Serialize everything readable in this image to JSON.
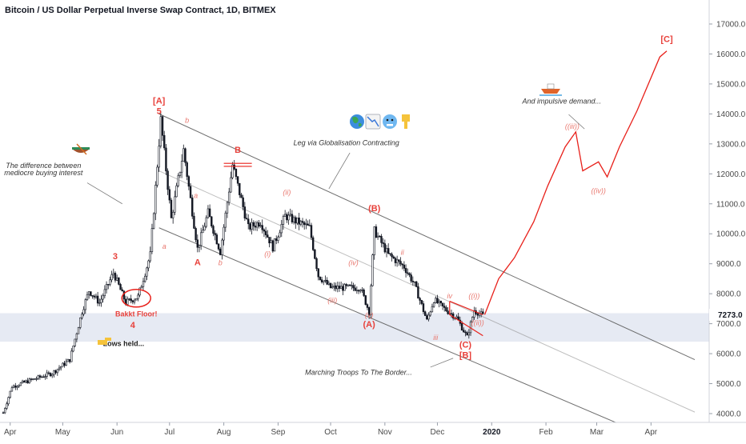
{
  "title": "Bitcoin / US Dollar Perpetual Inverse Swap Contract, 1D, BITMEX",
  "colors": {
    "candle": "#131722",
    "projection": "#e8201a",
    "wave_label": "#e8413b",
    "zone": "#dde3ef",
    "channel": "#555555",
    "price_badge": "#ffffff"
  },
  "price_badge": "7273.0",
  "chart_data": {
    "type": "candlestick",
    "x_tick_labels": [
      "Apr",
      "May",
      "Jun",
      "Jul",
      "Aug",
      "Sep",
      "Oct",
      "Nov",
      "Dec",
      "2020",
      "Feb",
      "Mar",
      "Apr"
    ],
    "y_tick_labels": [
      "17000.0",
      "16000.0",
      "15000.0",
      "14000.0",
      "13000.0",
      "12000.0",
      "11000.0",
      "10000.0",
      "9000.0",
      "8000.0",
      "7000.0",
      "6000.0",
      "5000.0",
      "4000.0"
    ],
    "y_ticks": [
      17000,
      16000,
      15000,
      14000,
      13000,
      12000,
      11000,
      10000,
      9000,
      8000,
      7000,
      6000,
      5000,
      4000
    ],
    "ylim": [
      3800,
      17700
    ],
    "grid": false,
    "support_zone": [
      6400,
      7350
    ],
    "price_path": [
      {
        "date": "2019-03-28",
        "price": 4030
      },
      {
        "date": "2019-04-02",
        "price": 4900
      },
      {
        "date": "2019-04-12",
        "price": 5100
      },
      {
        "date": "2019-04-25",
        "price": 5350
      },
      {
        "date": "2019-05-05",
        "price": 5800
      },
      {
        "date": "2019-05-12",
        "price": 7400
      },
      {
        "date": "2019-05-16",
        "price": 8100
      },
      {
        "date": "2019-05-22",
        "price": 7700
      },
      {
        "date": "2019-05-30",
        "price": 8700
      },
      {
        "date": "2019-06-06",
        "price": 7700
      },
      {
        "date": "2019-06-13",
        "price": 7900
      },
      {
        "date": "2019-06-20",
        "price": 9300
      },
      {
        "date": "2019-06-26",
        "price": 13800
      },
      {
        "date": "2019-07-02",
        "price": 10500
      },
      {
        "date": "2019-07-09",
        "price": 12800
      },
      {
        "date": "2019-07-17",
        "price": 9500
      },
      {
        "date": "2019-07-23",
        "price": 10700
      },
      {
        "date": "2019-07-30",
        "price": 9400
      },
      {
        "date": "2019-08-06",
        "price": 12300
      },
      {
        "date": "2019-08-15",
        "price": 10200
      },
      {
        "date": "2019-08-22",
        "price": 10400
      },
      {
        "date": "2019-08-29",
        "price": 9550
      },
      {
        "date": "2019-09-05",
        "price": 10600
      },
      {
        "date": "2019-09-19",
        "price": 10200
      },
      {
        "date": "2019-09-24",
        "price": 8600
      },
      {
        "date": "2019-10-01",
        "price": 8200
      },
      {
        "date": "2019-10-08",
        "price": 8200
      },
      {
        "date": "2019-10-18",
        "price": 8200
      },
      {
        "date": "2019-10-23",
        "price": 7400
      },
      {
        "date": "2019-10-26",
        "price": 10100
      },
      {
        "date": "2019-11-03",
        "price": 9300
      },
      {
        "date": "2019-11-12",
        "price": 8900
      },
      {
        "date": "2019-11-18",
        "price": 8300
      },
      {
        "date": "2019-11-25",
        "price": 7100
      },
      {
        "date": "2019-11-29",
        "price": 7800
      },
      {
        "date": "2019-12-05",
        "price": 7500
      },
      {
        "date": "2019-12-12",
        "price": 7200
      },
      {
        "date": "2019-12-18",
        "price": 6550
      },
      {
        "date": "2019-12-22",
        "price": 7450
      },
      {
        "date": "2019-12-27",
        "price": 7273
      }
    ],
    "projection_path": [
      {
        "date": "2019-12-28",
        "price": 7300
      },
      {
        "date": "2020-01-05",
        "price": 8500
      },
      {
        "date": "2020-01-14",
        "price": 9200
      },
      {
        "date": "2020-01-25",
        "price": 10400
      },
      {
        "date": "2020-02-02",
        "price": 11600
      },
      {
        "date": "2020-02-12",
        "price": 12900
      },
      {
        "date": "2020-02-18",
        "price": 13400
      },
      {
        "date": "2020-02-22",
        "price": 12100
      },
      {
        "date": "2020-03-02",
        "price": 12400
      },
      {
        "date": "2020-03-07",
        "price": 11900
      },
      {
        "date": "2020-03-14",
        "price": 12900
      },
      {
        "date": "2020-03-24",
        "price": 14100
      },
      {
        "date": "2020-04-06",
        "price": 15900
      },
      {
        "date": "2020-04-10",
        "price": 16100
      }
    ],
    "annotations": {
      "wave_labels": [
        {
          "text": "[A]",
          "date": "2019-06-25",
          "price": 14340,
          "style": "big"
        },
        {
          "text": "5",
          "date": "2019-06-25",
          "price": 14000,
          "style": "big"
        },
        {
          "text": "b",
          "date": "2019-07-11",
          "price": 13700,
          "style": "sub"
        },
        {
          "text": "a",
          "date": "2019-06-28",
          "price": 9500,
          "style": "sub"
        },
        {
          "text": "a",
          "date": "2019-07-16",
          "price": 11200,
          "style": "sub"
        },
        {
          "text": "A",
          "date": "2019-07-17",
          "price": 8950,
          "style": "big"
        },
        {
          "text": "b",
          "date": "2019-07-30",
          "price": 8950,
          "style": "sub"
        },
        {
          "text": "B",
          "date": "2019-08-09",
          "price": 12700,
          "style": "big"
        },
        {
          "text": "(i)",
          "date": "2019-08-26",
          "price": 9250,
          "style": "sub"
        },
        {
          "text": "(ii)",
          "date": "2019-09-06",
          "price": 11300,
          "style": "sub"
        },
        {
          "text": "(iii)",
          "date": "2019-10-02",
          "price": 7700,
          "style": "sub"
        },
        {
          "text": "(iv)",
          "date": "2019-10-14",
          "price": 8950,
          "style": "sub"
        },
        {
          "text": "(v)",
          "date": "2019-10-23",
          "price": 7200,
          "style": "sub"
        },
        {
          "text": "(A)",
          "date": "2019-10-23",
          "price": 6880,
          "style": "big"
        },
        {
          "text": "(B)",
          "date": "2019-10-26",
          "price": 10750,
          "style": "big"
        },
        {
          "text": "ii",
          "date": "2019-11-11",
          "price": 9300,
          "style": "sub"
        },
        {
          "text": "iii",
          "date": "2019-11-30",
          "price": 6450,
          "style": "sub"
        },
        {
          "text": "iv",
          "date": "2019-12-08",
          "price": 7850,
          "style": "sub"
        },
        {
          "text": "((i))",
          "date": "2019-12-22",
          "price": 7850,
          "style": "sub"
        },
        {
          "text": "((ii))",
          "date": "2019-12-24",
          "price": 6950,
          "style": "sub"
        },
        {
          "text": "(C)",
          "date": "2019-12-17",
          "price": 6200,
          "style": "big"
        },
        {
          "text": "[B]",
          "date": "2019-12-17",
          "price": 5850,
          "style": "big"
        },
        {
          "text": "3",
          "date": "2019-05-31",
          "price": 9150,
          "style": "big"
        },
        {
          "text": "4",
          "date": "2019-06-10",
          "price": 6850,
          "style": "big"
        },
        {
          "text": "((iii))",
          "date": "2020-02-16",
          "price": 13500,
          "style": "sub"
        },
        {
          "text": "((iv))",
          "date": "2020-03-02",
          "price": 11350,
          "style": "sub"
        },
        {
          "text": "[C]",
          "date": "2020-04-10",
          "price": 16400,
          "style": "big"
        }
      ],
      "notes": [
        {
          "text": "The difference between",
          "date": "2019-04-20",
          "price": 12200
        },
        {
          "text": "mediocre buying interest",
          "date": "2019-04-20",
          "price": 11950
        },
        {
          "text": "Leg via Globalisation Contracting",
          "date": "2019-10-10",
          "price": 12950
        },
        {
          "text": "And impulsive demand...",
          "date": "2020-02-10",
          "price": 14350
        },
        {
          "text": "Marching Troops To The Border...",
          "date": "2019-10-17",
          "price": 5300
        }
      ],
      "bakkt_floor": "Bakkt Floor!",
      "lows_held": "Lows held..."
    },
    "icons": [
      "canoe-icon",
      "earth-icon",
      "chart-down-icon",
      "cold-face-icon",
      "point-down-icon",
      "speedboat-icon",
      "point-right-icon"
    ]
  }
}
